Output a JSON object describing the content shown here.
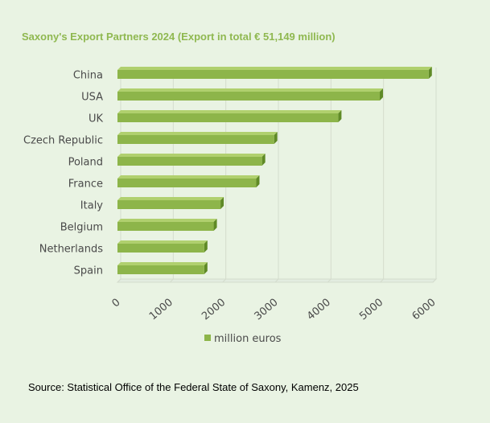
{
  "chart_data": {
    "type": "bar",
    "orientation": "horizontal",
    "title": "Saxony's Export Partners 2024   (Export  in total € 51,149 million)",
    "categories": [
      "China",
      "USA",
      "UK",
      "Czech Republic",
      "Poland",
      "France",
      "Italy",
      "Belgium",
      "Netherlands",
      "Spain"
    ],
    "series": [
      {
        "name": "million euros",
        "values": [
          5920,
          4990,
          4200,
          2980,
          2750,
          2640,
          1960,
          1830,
          1650,
          1650
        ]
      }
    ],
    "xlim": [
      0,
      6000
    ],
    "ticks": [
      "0",
      "1000",
      "2000",
      "3000",
      "4000",
      "5000",
      "6000"
    ],
    "grid": "vertical",
    "legend": "bottom",
    "colors": {
      "bar_front": "#8db54a",
      "bar_top": "#b0d06e",
      "bar_side": "#5f8a26",
      "grid": "#d4dccd"
    }
  },
  "source": "Source: Statistical Office of the Federal State of Saxony, Kamenz, 2025"
}
